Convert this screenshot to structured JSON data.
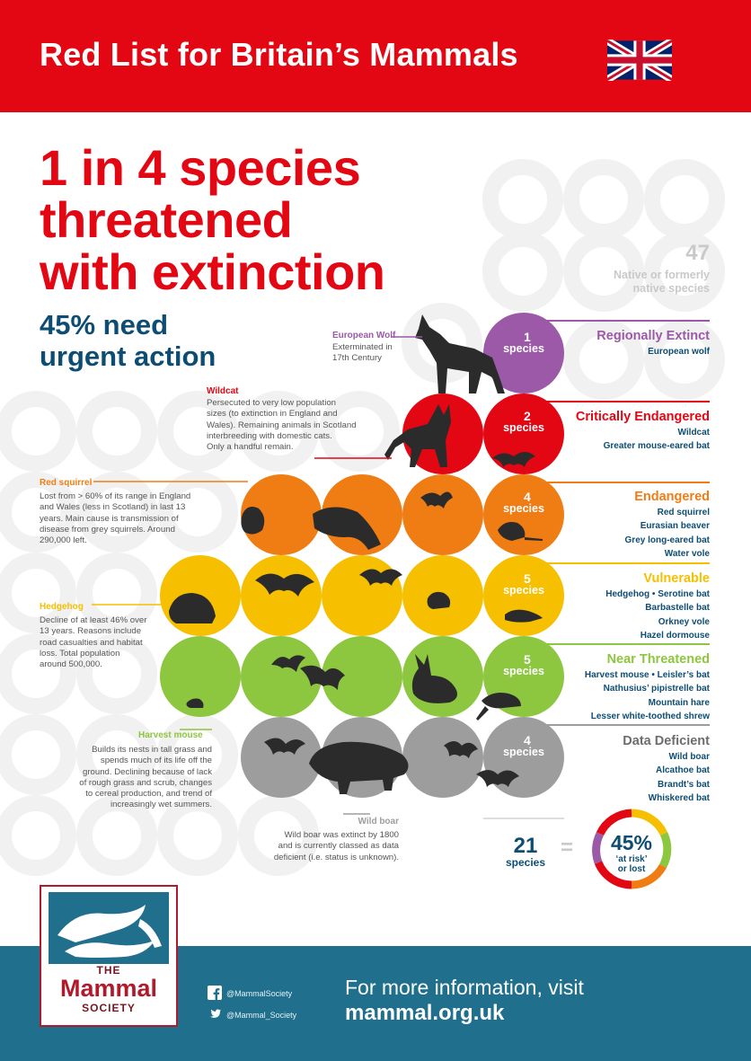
{
  "header": {
    "title": "Red List for Britain’s Mammals"
  },
  "headline": {
    "lines": [
      "1 in 4 species",
      "threatened",
      "with extinction"
    ]
  },
  "subheadline": {
    "lines": [
      "45% need",
      "urgent action"
    ]
  },
  "total": {
    "number": "47",
    "label_lines": [
      "Native or formerly",
      "native species"
    ]
  },
  "categories": [
    {
      "title": "Regionally Extinct",
      "count": "1",
      "unit": "species",
      "color": "#9b59a8",
      "species": [
        "European wolf"
      ]
    },
    {
      "title": "Critically Endangered",
      "count": "2",
      "unit": "species",
      "color": "#e30613",
      "species": [
        "Wildcat",
        "Greater mouse-eared bat"
      ]
    },
    {
      "title": "Endangered",
      "count": "4",
      "unit": "species",
      "color": "#f07d14",
      "species": [
        "Red squirrel",
        "Eurasian beaver",
        "Grey long-eared bat",
        "Water vole"
      ]
    },
    {
      "title": "Vulnerable",
      "count": "5",
      "unit": "species",
      "color": "#f6bf00",
      "species": [
        "Hedgehog • Serotine bat",
        "Barbastelle bat",
        "Orkney vole",
        "Hazel dormouse"
      ]
    },
    {
      "title": "Near Threatened",
      "count": "5",
      "unit": "species",
      "color": "#8dc63f",
      "species": [
        "Harvest mouse • Leisler’s bat",
        "Nathusius’ pipistrelle bat",
        "Mountain hare",
        "Lesser white-toothed shrew"
      ]
    },
    {
      "title": "Data Deficient",
      "count": "4",
      "unit": "species",
      "color": "#8c8c8c",
      "species": [
        "Wild boar",
        "Alcathoe bat",
        "Brandt’s bat",
        "Whiskered bat"
      ]
    }
  ],
  "notes": {
    "wolf": {
      "title": "European Wolf",
      "lines": [
        "Exterminated in",
        "17th Century"
      ]
    },
    "wildcat": {
      "title": "Wildcat",
      "lines": [
        "Persecuted to very low population",
        "sizes (to extinction in England and",
        "Wales). Remaining animals in Scotland",
        "interbreeding with domestic cats.",
        "Only a handful remain."
      ]
    },
    "red_squirrel": {
      "title": "Red squirrel",
      "lines": [
        "Lost from > 60% of its range in England",
        "and Wales (less in Scotland) in last 13",
        "years. Main cause is transmission of",
        "disease from grey squirrels. Around",
        "290,000 left."
      ]
    },
    "hedgehog": {
      "title": "Hedgehog",
      "lines": [
        "Decline of at least 46% over",
        "13 years. Reasons include",
        "road casualties and habitat",
        "loss. Total population",
        "around 500,000."
      ]
    },
    "harvest_mouse": {
      "title": "Harvest mouse",
      "lines": [
        "Builds its nests in tall grass and",
        "spends much of its life off the",
        "ground. Declining because of lack",
        "of rough grass and scrub, changes",
        "to cereal production, and trend of",
        "increasingly wet summers."
      ]
    },
    "wild_boar": {
      "title": "Wild boar",
      "lines": [
        "Wild boar was extinct by 1800",
        "and is currently classed as data",
        "deficient (i.e. status is unknown)."
      ]
    }
  },
  "summary": {
    "number": "21",
    "unit": "species",
    "equals": "=",
    "percent": "45%",
    "label_lines": [
      "‘at risk’",
      "or lost"
    ],
    "fraction": 0.45
  },
  "logo": {
    "the": "THE",
    "name": "Mammal",
    "society": "SOCIETY"
  },
  "footer": {
    "facebook": "@MammalSociety",
    "twitter": "@Mammal_Society",
    "info": "For more information, visit",
    "url": "mammal.org.uk"
  },
  "colors": {
    "red": "#e30613",
    "navy": "#0d4d74",
    "footer": "#1f6f8d",
    "ring": "#f0f0f0"
  }
}
